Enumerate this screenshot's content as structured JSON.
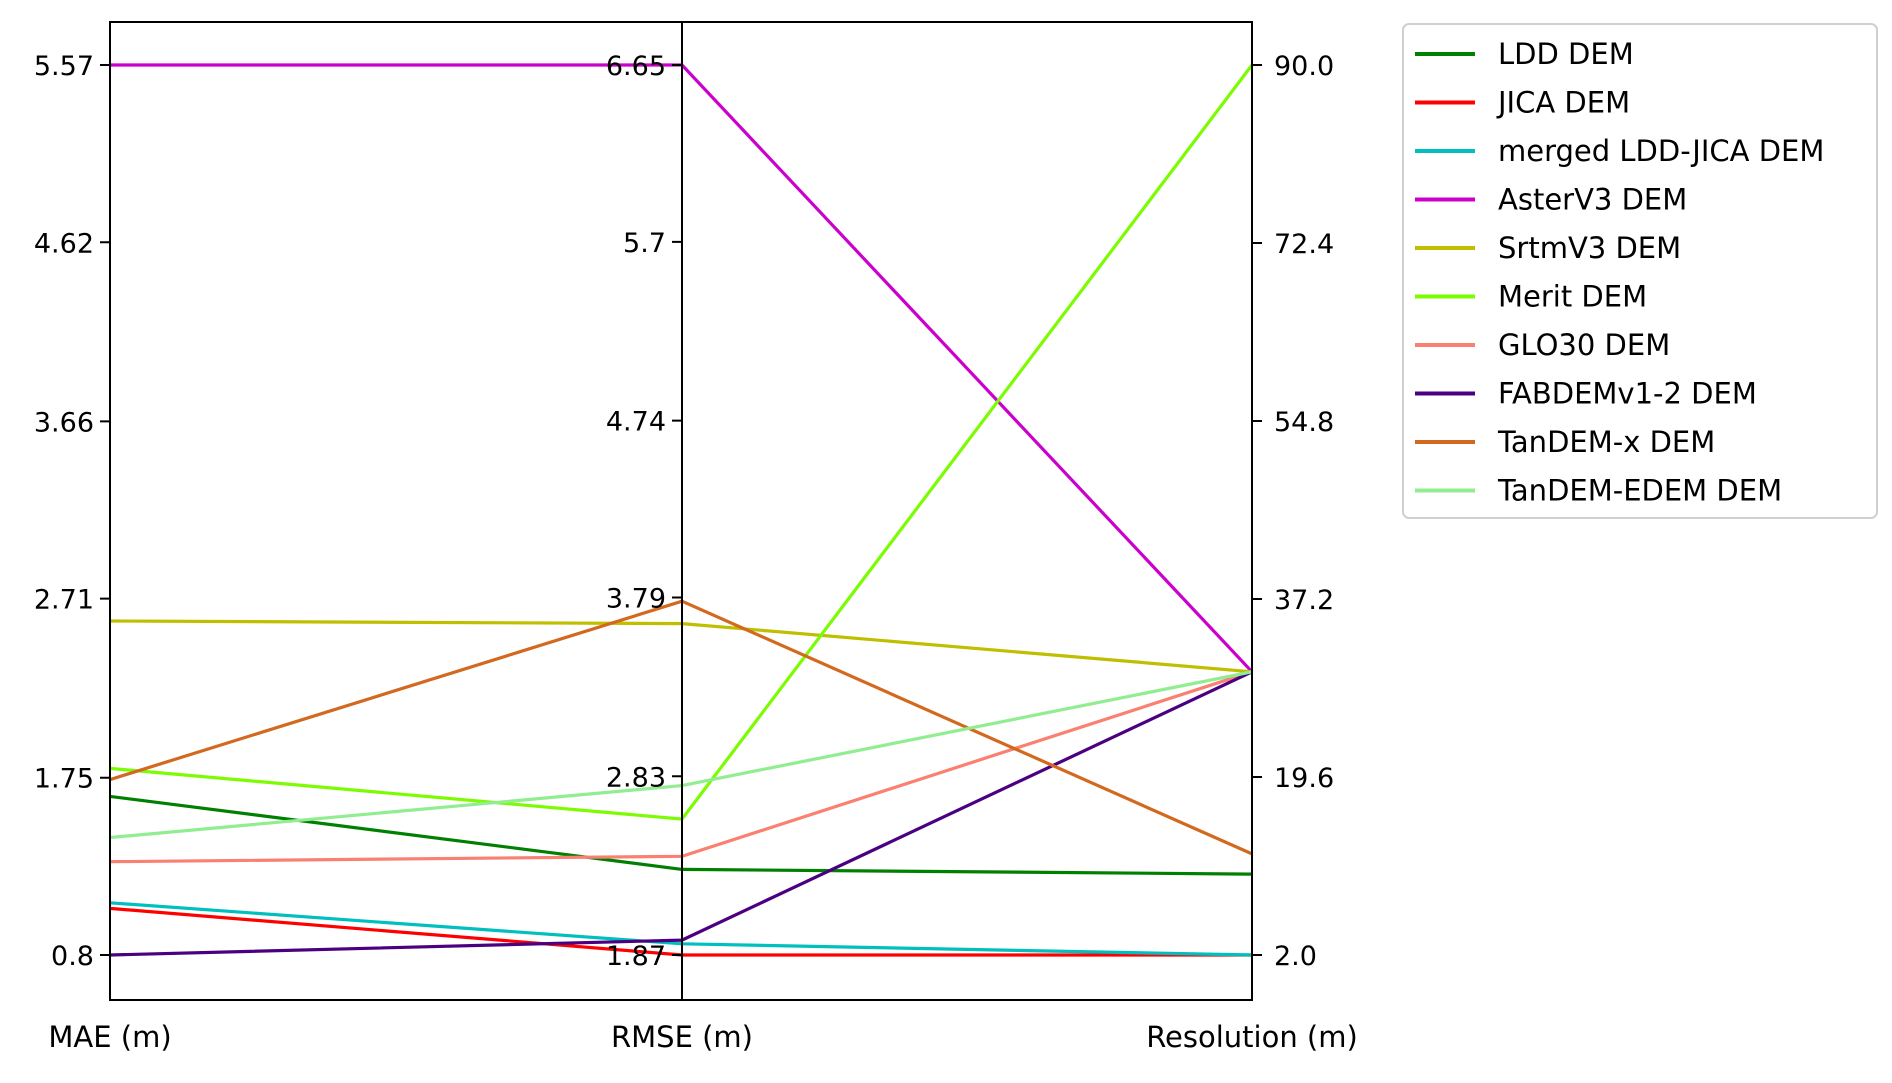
{
  "chart_data": {
    "type": "line",
    "subtype": "parallel-coordinates",
    "axes": [
      {
        "label": "MAE (m)",
        "min": 0.8,
        "max": 5.57,
        "ticks": [
          "0.8",
          "1.75",
          "2.71",
          "3.66",
          "4.62",
          "5.57"
        ]
      },
      {
        "label": "RMSE (m)",
        "min": 1.87,
        "max": 6.65,
        "ticks": [
          "1.87",
          "2.83",
          "3.79",
          "4.74",
          "5.7",
          "6.65"
        ]
      },
      {
        "label": "Resolution (m)",
        "min": 2.0,
        "max": 90.0,
        "ticks": [
          "2.0",
          "19.6",
          "37.2",
          "54.8",
          "72.4",
          "90.0"
        ]
      }
    ],
    "legend_position": "top-right",
    "grid": false,
    "series": [
      {
        "name": "LDD DEM",
        "color": "#008000",
        "values": [
          1.65,
          2.33,
          10.0
        ]
      },
      {
        "name": "JICA DEM",
        "color": "#ff0000",
        "values": [
          1.05,
          1.87,
          2.0
        ]
      },
      {
        "name": "merged LDD-JICA DEM",
        "color": "#00bfbf",
        "values": [
          1.08,
          1.93,
          2.0
        ]
      },
      {
        "name": "AsterV3 DEM",
        "color": "#cc00cc",
        "values": [
          5.57,
          6.65,
          30.0
        ]
      },
      {
        "name": "SrtmV3 DEM",
        "color": "#bfbf00",
        "values": [
          2.59,
          3.65,
          30.0
        ]
      },
      {
        "name": "Merit DEM",
        "color": "#7cfc00",
        "values": [
          1.8,
          2.6,
          90.0
        ]
      },
      {
        "name": "GLO30 DEM",
        "color": "#fa8072",
        "values": [
          1.3,
          2.4,
          30.0
        ]
      },
      {
        "name": "FABDEMv1-2 DEM",
        "color": "#4b0082",
        "values": [
          0.8,
          1.95,
          30.0
        ]
      },
      {
        "name": "TanDEM-x DEM",
        "color": "#d2691e",
        "values": [
          1.74,
          3.77,
          12.0
        ]
      },
      {
        "name": "TanDEM-EDEM DEM",
        "color": "#90ee90",
        "values": [
          1.43,
          2.78,
          30.0
        ]
      }
    ]
  }
}
